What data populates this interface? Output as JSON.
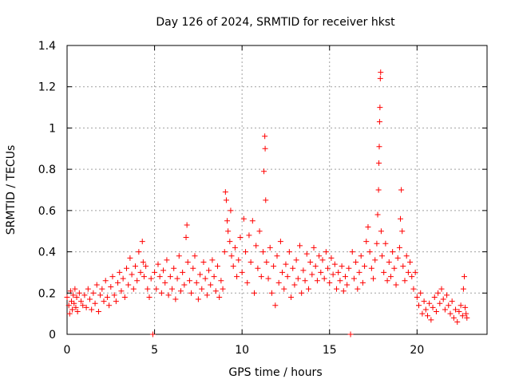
{
  "chart_data": {
    "type": "scatter",
    "title": "Day 126 of 2024, SRMTID for receiver hkst",
    "xlabel": "GPS time / hours",
    "ylabel": "SRMTID / TECUs",
    "xlim": [
      0,
      24
    ],
    "ylim": [
      0,
      1.4
    ],
    "xticks": [
      0,
      5,
      10,
      15,
      20
    ],
    "xtick_labels": [
      "0",
      "5",
      "10",
      "15",
      "20"
    ],
    "yticks": [
      0,
      0.2,
      0.4,
      0.6,
      0.8,
      1.0,
      1.2,
      1.4
    ],
    "ytick_labels": [
      "0",
      "0.2",
      "0.4",
      "0.6",
      "0.8",
      "1",
      "1.2",
      "1.4"
    ],
    "grid": true,
    "marker": "+",
    "color": "#ff0000",
    "series": [
      {
        "name": "SRMTID",
        "points": [
          [
            0.0,
            0.18
          ],
          [
            0.1,
            0.14
          ],
          [
            0.15,
            0.1
          ],
          [
            0.2,
            0.21
          ],
          [
            0.25,
            0.16
          ],
          [
            0.3,
            0.12
          ],
          [
            0.35,
            0.19
          ],
          [
            0.4,
            0.15
          ],
          [
            0.45,
            0.22
          ],
          [
            0.5,
            0.13
          ],
          [
            0.55,
            0.18
          ],
          [
            0.6,
            0.11
          ],
          [
            0.7,
            0.2
          ],
          [
            0.8,
            0.16
          ],
          [
            0.9,
            0.14
          ],
          [
            1.0,
            0.19
          ],
          [
            1.1,
            0.13
          ],
          [
            1.2,
            0.22
          ],
          [
            1.3,
            0.17
          ],
          [
            1.4,
            0.12
          ],
          [
            1.5,
            0.2
          ],
          [
            1.6,
            0.15
          ],
          [
            1.7,
            0.24
          ],
          [
            1.8,
            0.11
          ],
          [
            1.9,
            0.19
          ],
          [
            2.0,
            0.22
          ],
          [
            2.1,
            0.16
          ],
          [
            2.2,
            0.26
          ],
          [
            2.3,
            0.18
          ],
          [
            2.4,
            0.14
          ],
          [
            2.5,
            0.23
          ],
          [
            2.6,
            0.28
          ],
          [
            2.7,
            0.19
          ],
          [
            2.8,
            0.16
          ],
          [
            2.9,
            0.25
          ],
          [
            3.0,
            0.3
          ],
          [
            3.1,
            0.21
          ],
          [
            3.2,
            0.27
          ],
          [
            3.3,
            0.18
          ],
          [
            3.4,
            0.32
          ],
          [
            3.5,
            0.24
          ],
          [
            3.6,
            0.37
          ],
          [
            3.7,
            0.29
          ],
          [
            3.8,
            0.22
          ],
          [
            3.9,
            0.33
          ],
          [
            4.0,
            0.26
          ],
          [
            4.1,
            0.4
          ],
          [
            4.2,
            0.3
          ],
          [
            4.3,
            0.45
          ],
          [
            4.35,
            0.35
          ],
          [
            4.4,
            0.28
          ],
          [
            4.5,
            0.33
          ],
          [
            4.6,
            0.22
          ],
          [
            4.7,
            0.18
          ],
          [
            4.8,
            0.27
          ],
          [
            4.9,
            0.0
          ],
          [
            5.0,
            0.3
          ],
          [
            5.1,
            0.22
          ],
          [
            5.2,
            0.34
          ],
          [
            5.3,
            0.28
          ],
          [
            5.4,
            0.2
          ],
          [
            5.5,
            0.31
          ],
          [
            5.6,
            0.25
          ],
          [
            5.7,
            0.36
          ],
          [
            5.8,
            0.19
          ],
          [
            5.9,
            0.28
          ],
          [
            6.0,
            0.22
          ],
          [
            6.1,
            0.32
          ],
          [
            6.2,
            0.17
          ],
          [
            6.3,
            0.27
          ],
          [
            6.4,
            0.38
          ],
          [
            6.5,
            0.21
          ],
          [
            6.6,
            0.3
          ],
          [
            6.7,
            0.24
          ],
          [
            6.8,
            0.47
          ],
          [
            6.85,
            0.53
          ],
          [
            6.9,
            0.35
          ],
          [
            7.0,
            0.26
          ],
          [
            7.1,
            0.2
          ],
          [
            7.2,
            0.32
          ],
          [
            7.3,
            0.38
          ],
          [
            7.4,
            0.25
          ],
          [
            7.5,
            0.17
          ],
          [
            7.6,
            0.29
          ],
          [
            7.7,
            0.22
          ],
          [
            7.8,
            0.35
          ],
          [
            7.9,
            0.27
          ],
          [
            8.0,
            0.19
          ],
          [
            8.1,
            0.31
          ],
          [
            8.2,
            0.24
          ],
          [
            8.3,
            0.36
          ],
          [
            8.4,
            0.28
          ],
          [
            8.5,
            0.21
          ],
          [
            8.6,
            0.33
          ],
          [
            8.7,
            0.18
          ],
          [
            8.8,
            0.26
          ],
          [
            8.9,
            0.22
          ],
          [
            9.0,
            0.4
          ],
          [
            9.05,
            0.69
          ],
          [
            9.1,
            0.65
          ],
          [
            9.15,
            0.55
          ],
          [
            9.2,
            0.5
          ],
          [
            9.3,
            0.45
          ],
          [
            9.35,
            0.6
          ],
          [
            9.4,
            0.38
          ],
          [
            9.5,
            0.33
          ],
          [
            9.6,
            0.42
          ],
          [
            9.7,
            0.28
          ],
          [
            9.8,
            0.36
          ],
          [
            9.9,
            0.47
          ],
          [
            10.0,
            0.3
          ],
          [
            10.1,
            0.56
          ],
          [
            10.2,
            0.4
          ],
          [
            10.3,
            0.25
          ],
          [
            10.4,
            0.48
          ],
          [
            10.5,
            0.35
          ],
          [
            10.6,
            0.55
          ],
          [
            10.7,
            0.2
          ],
          [
            10.8,
            0.43
          ],
          [
            10.9,
            0.32
          ],
          [
            11.0,
            0.5
          ],
          [
            11.1,
            0.28
          ],
          [
            11.2,
            0.4
          ],
          [
            11.25,
            0.79
          ],
          [
            11.3,
            0.96
          ],
          [
            11.32,
            0.9
          ],
          [
            11.35,
            0.65
          ],
          [
            11.4,
            0.35
          ],
          [
            11.5,
            0.27
          ],
          [
            11.6,
            0.42
          ],
          [
            11.7,
            0.2
          ],
          [
            11.8,
            0.33
          ],
          [
            11.9,
            0.14
          ],
          [
            12.0,
            0.38
          ],
          [
            12.1,
            0.25
          ],
          [
            12.2,
            0.45
          ],
          [
            12.3,
            0.3
          ],
          [
            12.4,
            0.22
          ],
          [
            12.5,
            0.34
          ],
          [
            12.6,
            0.28
          ],
          [
            12.7,
            0.4
          ],
          [
            12.8,
            0.18
          ],
          [
            12.9,
            0.32
          ],
          [
            13.0,
            0.24
          ],
          [
            13.1,
            0.36
          ],
          [
            13.2,
            0.27
          ],
          [
            13.3,
            0.43
          ],
          [
            13.4,
            0.2
          ],
          [
            13.5,
            0.31
          ],
          [
            13.6,
            0.26
          ],
          [
            13.7,
            0.39
          ],
          [
            13.8,
            0.22
          ],
          [
            13.9,
            0.35
          ],
          [
            14.0,
            0.29
          ],
          [
            14.1,
            0.42
          ],
          [
            14.2,
            0.33
          ],
          [
            14.3,
            0.26
          ],
          [
            14.4,
            0.38
          ],
          [
            14.5,
            0.3
          ],
          [
            14.6,
            0.36
          ],
          [
            14.7,
            0.27
          ],
          [
            14.8,
            0.4
          ],
          [
            14.9,
            0.32
          ],
          [
            15.0,
            0.25
          ],
          [
            15.1,
            0.37
          ],
          [
            15.2,
            0.29
          ],
          [
            15.3,
            0.34
          ],
          [
            15.4,
            0.22
          ],
          [
            15.5,
            0.3
          ],
          [
            15.6,
            0.26
          ],
          [
            15.7,
            0.33
          ],
          [
            15.8,
            0.21
          ],
          [
            15.9,
            0.28
          ],
          [
            16.0,
            0.24
          ],
          [
            16.1,
            0.32
          ],
          [
            16.2,
            0.0
          ],
          [
            16.3,
            0.4
          ],
          [
            16.4,
            0.27
          ],
          [
            16.5,
            0.35
          ],
          [
            16.6,
            0.22
          ],
          [
            16.7,
            0.3
          ],
          [
            16.8,
            0.38
          ],
          [
            16.9,
            0.25
          ],
          [
            17.0,
            0.33
          ],
          [
            17.1,
            0.45
          ],
          [
            17.2,
            0.52
          ],
          [
            17.3,
            0.4
          ],
          [
            17.4,
            0.32
          ],
          [
            17.5,
            0.27
          ],
          [
            17.6,
            0.36
          ],
          [
            17.7,
            0.44
          ],
          [
            17.75,
            0.58
          ],
          [
            17.8,
            0.7
          ],
          [
            17.82,
            0.83
          ],
          [
            17.84,
            0.91
          ],
          [
            17.86,
            1.03
          ],
          [
            17.88,
            1.1
          ],
          [
            17.9,
            1.24
          ],
          [
            17.92,
            1.27
          ],
          [
            17.95,
            0.5
          ],
          [
            18.0,
            0.38
          ],
          [
            18.1,
            0.3
          ],
          [
            18.2,
            0.44
          ],
          [
            18.3,
            0.26
          ],
          [
            18.4,
            0.35
          ],
          [
            18.5,
            0.28
          ],
          [
            18.6,
            0.4
          ],
          [
            18.7,
            0.32
          ],
          [
            18.8,
            0.24
          ],
          [
            18.9,
            0.37
          ],
          [
            19.0,
            0.42
          ],
          [
            19.05,
            0.56
          ],
          [
            19.1,
            0.7
          ],
          [
            19.15,
            0.5
          ],
          [
            19.2,
            0.33
          ],
          [
            19.3,
            0.26
          ],
          [
            19.4,
            0.38
          ],
          [
            19.5,
            0.3
          ],
          [
            19.6,
            0.35
          ],
          [
            19.7,
            0.28
          ],
          [
            19.8,
            0.22
          ],
          [
            19.9,
            0.3
          ],
          [
            20.0,
            0.18
          ],
          [
            20.1,
            0.14
          ],
          [
            20.2,
            0.2
          ],
          [
            20.3,
            0.1
          ],
          [
            20.4,
            0.16
          ],
          [
            20.5,
            0.12
          ],
          [
            20.6,
            0.09
          ],
          [
            20.7,
            0.15
          ],
          [
            20.8,
            0.07
          ],
          [
            20.9,
            0.13
          ],
          [
            21.0,
            0.18
          ],
          [
            21.1,
            0.11
          ],
          [
            21.2,
            0.2
          ],
          [
            21.3,
            0.15
          ],
          [
            21.4,
            0.22
          ],
          [
            21.5,
            0.17
          ],
          [
            21.6,
            0.12
          ],
          [
            21.7,
            0.19
          ],
          [
            21.8,
            0.14
          ],
          [
            21.9,
            0.1
          ],
          [
            22.0,
            0.16
          ],
          [
            22.1,
            0.08
          ],
          [
            22.2,
            0.12
          ],
          [
            22.3,
            0.06
          ],
          [
            22.4,
            0.11
          ],
          [
            22.5,
            0.14
          ],
          [
            22.6,
            0.09
          ],
          [
            22.65,
            0.22
          ],
          [
            22.7,
            0.28
          ],
          [
            22.75,
            0.13
          ],
          [
            22.8,
            0.1
          ],
          [
            22.85,
            0.08
          ]
        ]
      }
    ]
  }
}
